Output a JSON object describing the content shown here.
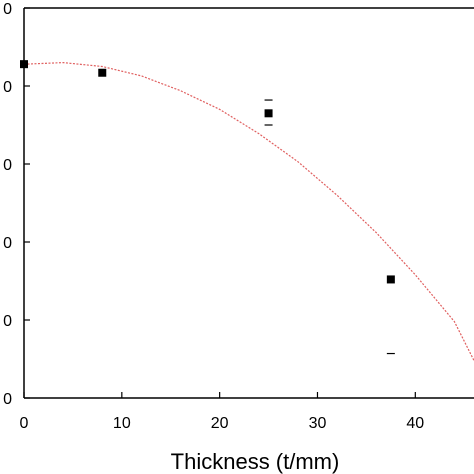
{
  "chart_data": {
    "type": "scatter",
    "title": "",
    "xlabel": "Thickness (t/mm)",
    "ylabel": "",
    "xlim": [
      0,
      46
    ],
    "ylim": [
      0,
      5
    ],
    "grid": false,
    "x_ticks": [
      0,
      10,
      20,
      30,
      40
    ],
    "y_tick_values": [
      0,
      1,
      2,
      3,
      4,
      5
    ],
    "y_tick_labels": [
      "0",
      "0",
      "0",
      "0",
      "0",
      "0"
    ],
    "series": [
      {
        "kind": "points",
        "x": [
          0,
          8,
          25,
          37.5
        ],
        "y": [
          4.28,
          4.17,
          3.65,
          1.52
        ],
        "err_upper": [
          null,
          null,
          3.82,
          null
        ],
        "err_lower": [
          null,
          null,
          3.5,
          0.57
        ],
        "color": "#000000"
      },
      {
        "kind": "fit-curve",
        "x": [
          0,
          4,
          8,
          12,
          16,
          20,
          24,
          28,
          32,
          36,
          40,
          44,
          46
        ],
        "y": [
          4.28,
          4.3,
          4.25,
          4.13,
          3.94,
          3.7,
          3.39,
          3.03,
          2.6,
          2.12,
          1.58,
          0.98,
          0.48
        ],
        "color": "#e06060"
      }
    ]
  }
}
